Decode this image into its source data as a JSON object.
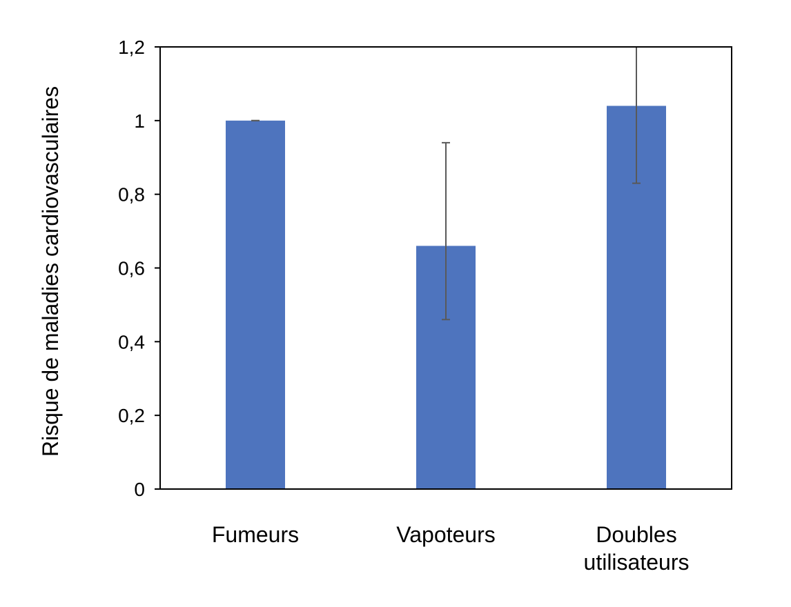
{
  "chart_data": {
    "type": "bar",
    "title": "",
    "xlabel": "",
    "ylabel": "Risque de maladies cardiovasculaires",
    "ylim": [
      0,
      1.2
    ],
    "yticks": [
      0,
      0.2,
      0.4,
      0.6,
      0.8,
      1,
      1.2
    ],
    "ytick_labels": [
      "0",
      "0,2",
      "0,4",
      "0,6",
      "0,8",
      "1",
      "1,2"
    ],
    "categories": [
      "Fumeurs",
      "Vapoteurs",
      "Doubles utilisateurs"
    ],
    "category_lines": [
      [
        "Fumeurs"
      ],
      [
        "Vapoteurs"
      ],
      [
        "Doubles",
        "utilisateurs"
      ]
    ],
    "values": [
      1.0,
      0.66,
      1.04
    ],
    "error_low": [
      1.0,
      0.46,
      0.83
    ],
    "error_high": [
      1.0,
      0.94,
      1.2
    ],
    "bar_color": "#4e74be",
    "error_color": "#595959",
    "grid": false,
    "legend": "none"
  }
}
